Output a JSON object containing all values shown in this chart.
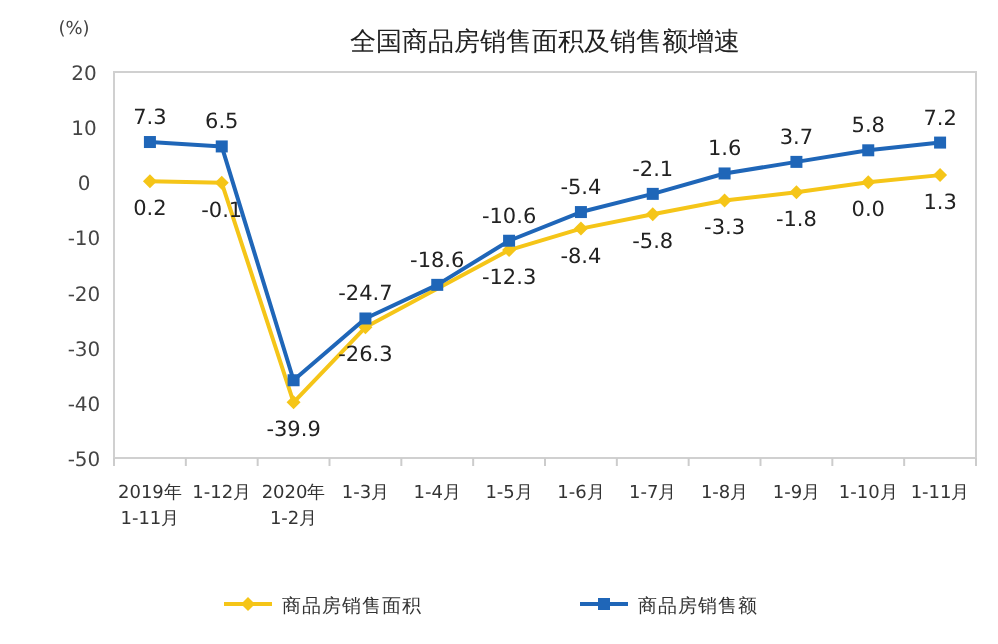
{
  "chart_data": {
    "type": "line",
    "title": "全国商品房销售面积及销售额增速",
    "ylabel": "(%)",
    "categories": [
      "2019年\n1-11月",
      "1-12月",
      "2020年\n1-2月",
      "1-3月",
      "1-4月",
      "1-5月",
      "1-6月",
      "1-7月",
      "1-8月",
      "1-9月",
      "1-10月",
      "1-11月"
    ],
    "series": [
      {
        "name": "商品房销售面积",
        "color": "#f5c518",
        "marker": "diamond",
        "values": [
          0.2,
          -0.1,
          -39.9,
          -26.3,
          null,
          -12.3,
          -8.4,
          -5.8,
          -3.3,
          -1.8,
          0.0,
          1.3
        ],
        "value_labels": [
          "0.2",
          "-0.1",
          "-39.9",
          "-26.3",
          null,
          "-12.3",
          "-8.4",
          "-5.8",
          "-3.3",
          "-1.8",
          "0.0",
          "1.3"
        ]
      },
      {
        "name": "商品房销售额",
        "color": "#1f66b8",
        "marker": "square",
        "values": [
          7.3,
          6.5,
          -35.9,
          -24.7,
          -18.6,
          -10.6,
          -5.4,
          -2.1,
          1.6,
          3.7,
          5.8,
          7.2
        ],
        "value_labels": [
          "7.3",
          "6.5",
          null,
          "-24.7",
          "-18.6",
          "-10.6",
          "-5.4",
          "-2.1",
          "1.6",
          "3.7",
          "5.8",
          "7.2"
        ]
      }
    ],
    "ylim": [
      -50,
      20
    ],
    "yticks": [
      -50,
      -40,
      -30,
      -20,
      -10,
      0,
      10,
      20
    ],
    "grid": false,
    "legend": "bottom"
  }
}
